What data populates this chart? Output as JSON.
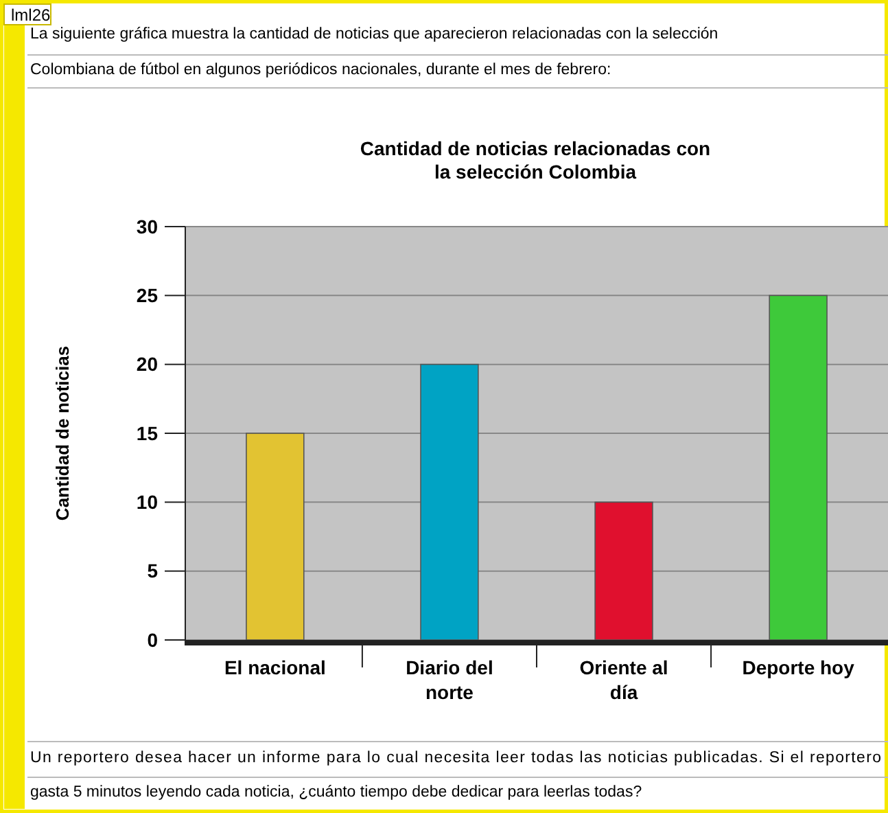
{
  "chart_data": {
    "type": "bar",
    "title": "Cantidad de noticias relacionadas con\nla selección Colombia",
    "ylabel": "Cantidad de noticias",
    "categories": [
      "El nacional",
      "Diario del norte",
      "Oriente al día",
      "Deporte hoy"
    ],
    "values": [
      15,
      20,
      10,
      25
    ],
    "colors": [
      "#e2c332",
      "#00a3c4",
      "#e0102e",
      "#3ec93a"
    ],
    "ylim": [
      0,
      30
    ],
    "yticks": [
      0,
      5,
      10,
      15,
      20,
      25,
      30
    ],
    "grid": "y",
    "annotations": [
      "lml26",
      "La siguiente gráfica muestra la cantidad de noticias que aparecieron relacionadas con la selección",
      "Colombiana de fútbol en algunos periódicos nacionales, durante el mes de febrero:",
      "Un reportero desea hacer un informe para lo cual necesita leer todas las noticias publicadas. Si el reportero",
      "gasta 5 minutos leyendo cada noticia, ¿cuánto tiempo debe dedicar para leerlas todas?"
    ]
  }
}
